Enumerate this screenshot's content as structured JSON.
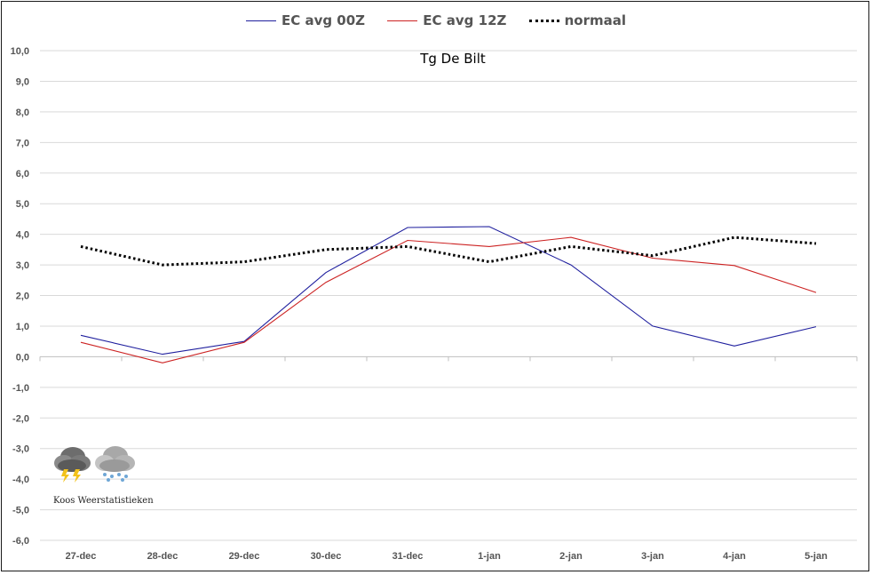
{
  "chart_data": {
    "type": "line",
    "title": "Tg De Bilt",
    "categories": [
      "27-dec",
      "28-dec",
      "29-dec",
      "30-dec",
      "31-dec",
      "1-jan",
      "2-jan",
      "3-jan",
      "4-jan",
      "5-jan"
    ],
    "ylim": [
      -6.0,
      10.0
    ],
    "yticks": [
      "10,0",
      "9,0",
      "8,0",
      "7,0",
      "6,0",
      "5,0",
      "4,0",
      "3,0",
      "2,0",
      "1,0",
      "0,0",
      "-1,0",
      "-2,0",
      "-3,0",
      "-4,0",
      "-5,0",
      "-6,0"
    ],
    "grid": true,
    "legend": "top-center",
    "series": [
      {
        "name": "EC avg 00Z",
        "color": "#1f1f9e",
        "style": "solid",
        "values": [
          0.7,
          0.08,
          0.5,
          2.75,
          4.22,
          4.25,
          3.0,
          1.0,
          0.35,
          0.98
        ]
      },
      {
        "name": "EC avg 12Z",
        "color": "#cc2222",
        "style": "solid",
        "values": [
          0.47,
          -0.2,
          0.47,
          2.43,
          3.8,
          3.6,
          3.9,
          3.22,
          2.98,
          2.1
        ]
      },
      {
        "name": "normaal",
        "color": "#000000",
        "style": "dotted",
        "values": [
          3.6,
          3.0,
          3.1,
          3.5,
          3.6,
          3.1,
          3.6,
          3.3,
          3.9,
          3.7
        ]
      }
    ]
  },
  "watermark": {
    "text": "Koos Weerstatistieken",
    "icons": [
      "thunderstorm-cloud-icon",
      "snow-cloud-icon"
    ]
  }
}
